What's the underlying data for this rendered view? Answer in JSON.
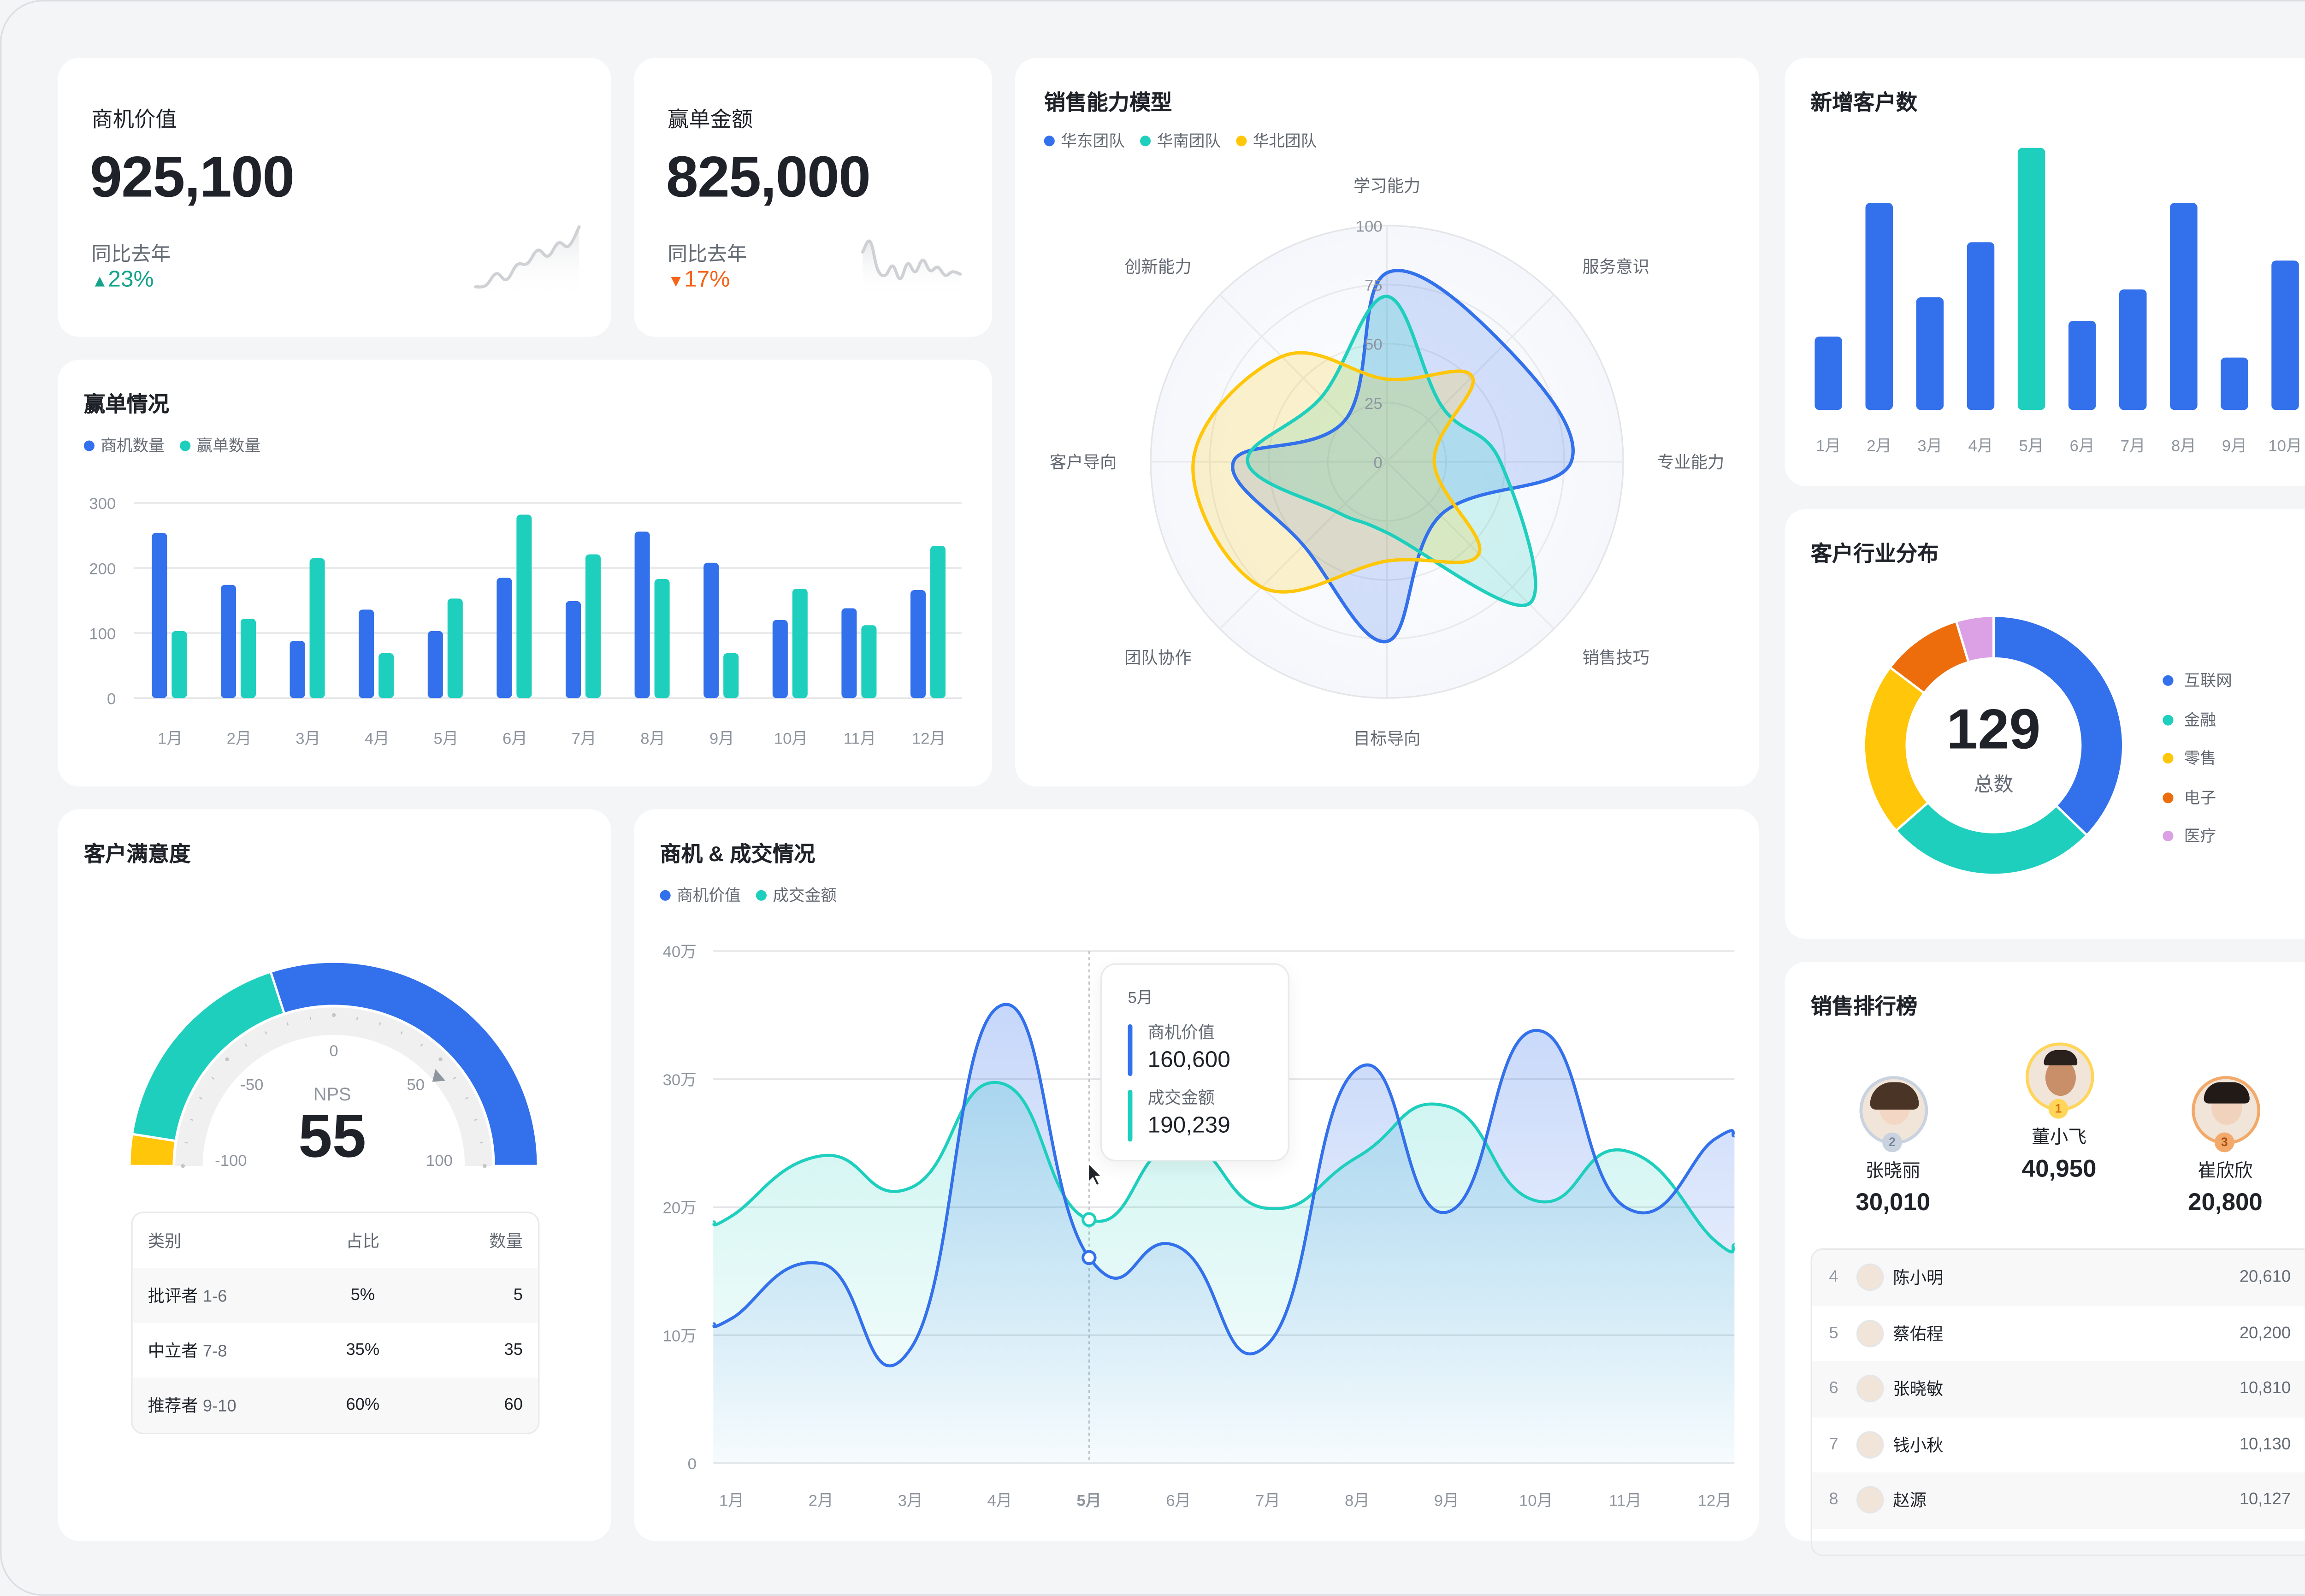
{
  "kpis": [
    {
      "label": "商机价值",
      "value": "925,100",
      "compare_label": "同比去年",
      "delta": "23%",
      "direction": "up",
      "color": "#14a38b",
      "sparkline": [
        10,
        12,
        28,
        20,
        40,
        42,
        60,
        52,
        70,
        66,
        92
      ]
    },
    {
      "label": "赢单金额",
      "value": "825,000",
      "compare_label": "同比去年",
      "delta": "17%",
      "direction": "down",
      "color": "#f5631a",
      "sparkline": [
        70,
        88,
        40,
        30,
        46,
        24,
        50,
        36,
        56,
        38,
        44,
        30,
        36,
        32
      ]
    }
  ],
  "win_chart": {
    "title": "赢单情况",
    "chart_data": {
      "type": "bar",
      "categories": [
        "1月",
        "2月",
        "3月",
        "4月",
        "5月",
        "6月",
        "7月",
        "8月",
        "9月",
        "10月",
        "11月",
        "12月"
      ],
      "series": [
        {
          "name": "商机数量",
          "color": "#3370eb",
          "values": [
            254,
            174,
            88,
            136,
            103,
            185,
            149,
            256,
            208,
            120,
            138,
            166
          ]
        },
        {
          "name": "赢单数量",
          "color": "#1fcfbe",
          "values": [
            103,
            122,
            215,
            69,
            153,
            282,
            221,
            183,
            69,
            168,
            112,
            234
          ]
        }
      ],
      "yticks": [
        "0",
        "100",
        "200",
        "300"
      ],
      "ylim": [
        0,
        300
      ],
      "grid": true,
      "legend": "top-left"
    }
  },
  "radar": {
    "title": "销售能力模型",
    "chart_data": {
      "type": "radar",
      "axes": [
        "学习能力",
        "服务意识",
        "专业能力",
        "销售技巧",
        "目标导向",
        "团队协作",
        "客户导向",
        "创新能力"
      ],
      "rticks": [
        "0",
        "25",
        "50",
        "75",
        "100"
      ],
      "rlim": [
        0,
        100
      ],
      "series": [
        {
          "name": "华东团队",
          "color": "#3370eb",
          "values": [
            80,
            70,
            78,
            32,
            76,
            50,
            65,
            25
          ]
        },
        {
          "name": "华南团队",
          "color": "#1fcfbe",
          "values": [
            70,
            33,
            48,
            85,
            30,
            30,
            59,
            39
          ]
        },
        {
          "name": "华北团队",
          "color": "#ffc60a",
          "values": [
            35,
            51,
            20,
            55,
            42,
            75,
            82,
            63
          ]
        }
      ],
      "legend": "top-left"
    }
  },
  "new_customers": {
    "title": "新增客户数",
    "chart_data": {
      "type": "bar",
      "categories": [
        "1月",
        "2月",
        "3月",
        "4月",
        "5月",
        "6月",
        "7月",
        "8月",
        "9月",
        "10月"
      ],
      "values": [
        28,
        79,
        43,
        64,
        100,
        34,
        46,
        79,
        20,
        57
      ],
      "highlight_index": 4,
      "colors": {
        "default": "#3370eb",
        "highlight": "#1fcfbe"
      },
      "ylim": [
        0,
        100
      ],
      "grid": false
    }
  },
  "industry": {
    "title": "客户行业分布",
    "total": "129",
    "total_label": "总数",
    "chart_data": {
      "type": "pie",
      "donut": true,
      "categories": [
        "互联网",
        "金融",
        "零售",
        "电子",
        "医疗"
      ],
      "values": [
        48,
        34,
        28,
        13,
        6
      ],
      "colors": [
        "#3370eb",
        "#1fcfbe",
        "#ffc60a",
        "#ed6d0c",
        "#dca1e4"
      ],
      "legend": "right"
    }
  },
  "satisfaction": {
    "title": "客户满意度",
    "gauge": {
      "label": "NPS",
      "value": "55",
      "value_num": 55,
      "min": -100,
      "max": 100,
      "ticks": [
        "-100",
        "-50",
        "0",
        "50",
        "100"
      ],
      "segments": [
        {
          "name": "批评者",
          "fraction": 0.05,
          "color": "#ffc60a"
        },
        {
          "name": "中立者",
          "fraction": 0.35,
          "color": "#1fcfbe"
        },
        {
          "name": "推荐者",
          "fraction": 0.6,
          "color": "#3370eb"
        }
      ]
    },
    "table": {
      "headers": [
        "类别",
        "占比",
        "数量"
      ],
      "rows": [
        {
          "category": "批评者",
          "range": "1-6",
          "share": "5%",
          "count": "5"
        },
        {
          "category": "中立者",
          "range": "7-8",
          "share": "35%",
          "count": "35"
        },
        {
          "category": "推荐者",
          "range": "9-10",
          "share": "60%",
          "count": "60"
        }
      ]
    }
  },
  "trend": {
    "title": "商机 & 成交情况",
    "chart_data": {
      "type": "area",
      "x": [
        "1月",
        "2月",
        "3月",
        "4月",
        "5月",
        "6月",
        "7月",
        "8月",
        "9月",
        "10月",
        "11月",
        "12月"
      ],
      "series": [
        {
          "name": "商机价值",
          "color": "#3370eb",
          "values": [
            113000,
            156000,
            89000,
            357000,
            160600,
            169000,
            93000,
            308000,
            196000,
            338000,
            200000,
            253000
          ]
        },
        {
          "name": "成交金额",
          "color": "#1fcfbe",
          "values": [
            193000,
            240000,
            215000,
            297000,
            190239,
            250000,
            199000,
            239000,
            279000,
            205000,
            244000,
            174000
          ]
        }
      ],
      "yticks": [
        "0",
        "10万",
        "20万",
        "30万",
        "40万"
      ],
      "ylim": [
        0,
        400000
      ],
      "grid": true,
      "legend": "top-left",
      "active_index": 4
    },
    "tooltip": {
      "title": "5月",
      "items": [
        {
          "label": "商机价值",
          "value": "160,600",
          "color": "#3370eb"
        },
        {
          "label": "成交金额",
          "value": "190,239",
          "color": "#1fcfbe"
        }
      ]
    }
  },
  "ranking": {
    "title": "销售排行榜",
    "podium": [
      {
        "rank": "2",
        "name": "张晓丽",
        "value": "30,010",
        "ring": "#c9d2df",
        "badge_text": "#7a8597"
      },
      {
        "rank": "1",
        "name": "董小飞",
        "value": "40,950",
        "ring": "#ffd55a",
        "badge_text": "#d9700b"
      },
      {
        "rank": "3",
        "name": "崔欣欣",
        "value": "20,800",
        "ring": "#f2a96a",
        "badge_text": "#a64d12"
      }
    ],
    "list": [
      {
        "rank": "4",
        "name": "陈小明",
        "value": "20,610"
      },
      {
        "rank": "5",
        "name": "蔡佑程",
        "value": "20,200"
      },
      {
        "rank": "6",
        "name": "张晓敏",
        "value": "10,810"
      },
      {
        "rank": "7",
        "name": "钱小秋",
        "value": "10,130"
      },
      {
        "rank": "8",
        "name": "赵源",
        "value": "10,127"
      }
    ]
  }
}
